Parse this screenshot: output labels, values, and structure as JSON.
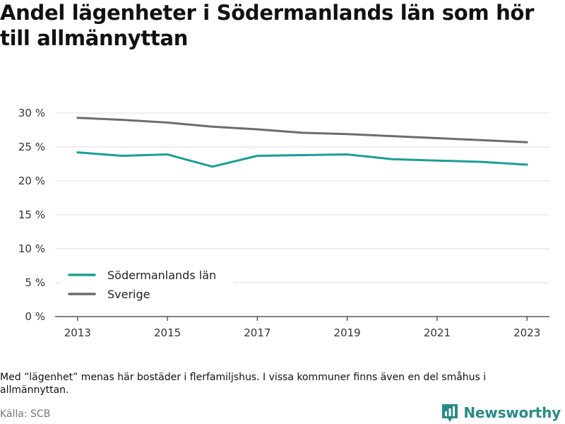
{
  "header": {
    "title": "Andel lägenheter i Södermanlands län som hör till allmännyttan"
  },
  "chart_data": {
    "type": "line",
    "x": [
      2013,
      2014,
      2015,
      2016,
      2017,
      2018,
      2019,
      2020,
      2021,
      2022,
      2023
    ],
    "series": [
      {
        "name": "Södermanlands län",
        "color": "#1a9e96",
        "values": [
          24.2,
          23.7,
          23.9,
          22.1,
          23.7,
          23.8,
          23.9,
          23.2,
          23.0,
          22.8,
          22.4
        ]
      },
      {
        "name": "Sverige",
        "color": "#6b6b70",
        "values": [
          29.3,
          29.0,
          28.6,
          28.0,
          27.6,
          27.1,
          26.9,
          26.6,
          26.3,
          26.0,
          25.7
        ]
      }
    ],
    "x_ticks": [
      "2013",
      "2015",
      "2017",
      "2019",
      "2021",
      "2023"
    ],
    "y_ticks": [
      "0 %",
      "5 %",
      "10 %",
      "15 %",
      "20 %",
      "25 %",
      "30 %"
    ],
    "y_tick_values": [
      0,
      5,
      10,
      15,
      20,
      25,
      30
    ],
    "xlim": [
      2012.5,
      2023.5
    ],
    "ylim": [
      0,
      30
    ],
    "grid": true,
    "legend_position": "bottom-left"
  },
  "footer": {
    "note": "Med ”lägenhet” menas här bostäder i flerfamiljshus. I vissa kommuner finns även en del småhus i allmännyttan.",
    "source": "Källa: SCB",
    "brand": "Newsworthy"
  },
  "colors": {
    "grid": "#dddddd",
    "axis": "#333333",
    "brand": "#2a8a86"
  }
}
